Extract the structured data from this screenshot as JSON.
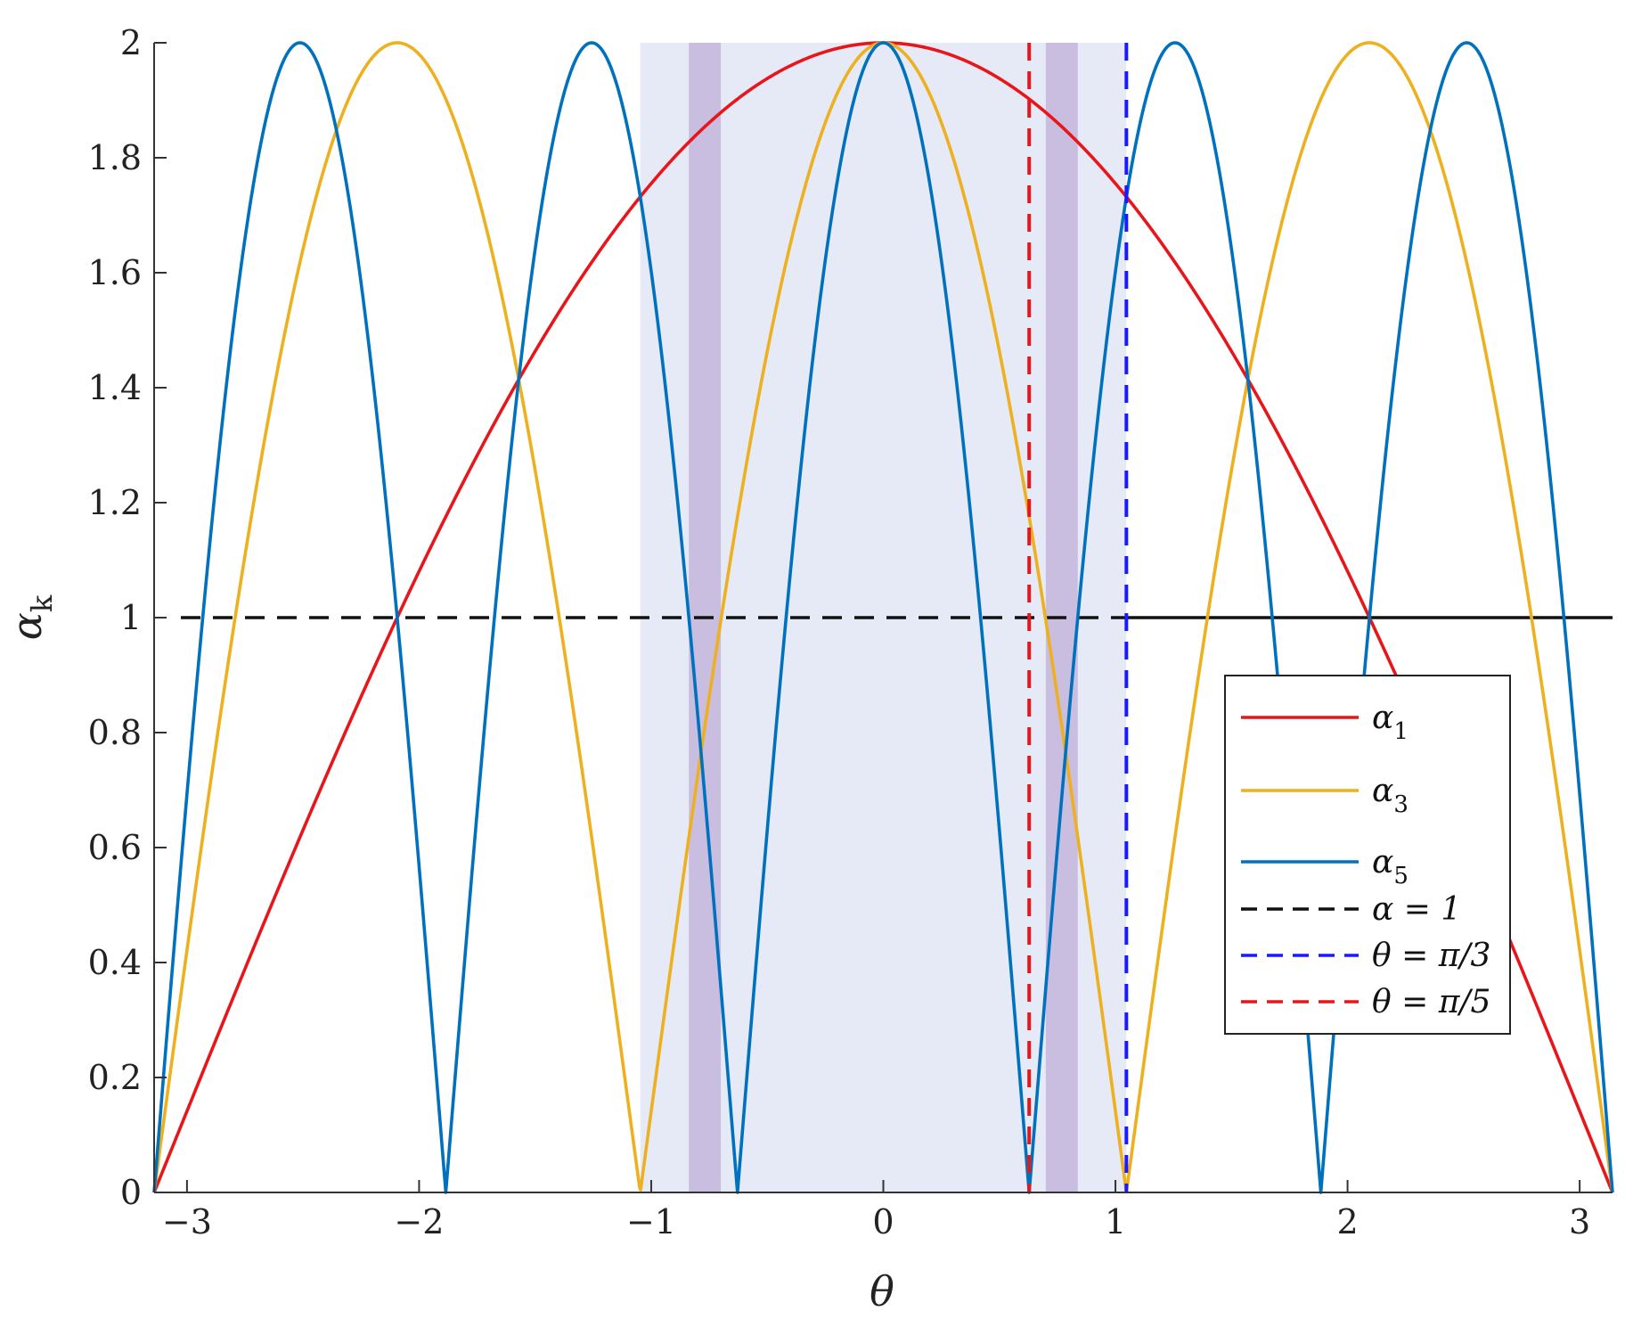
{
  "chart_data": {
    "type": "line",
    "title": "",
    "xlabel": "θ",
    "ylabel": "αk",
    "xlim": [
      -3.14159,
      3.14159
    ],
    "ylim": [
      0,
      2
    ],
    "xticks": [
      -3,
      -2,
      -1,
      0,
      1,
      2,
      3
    ],
    "xtick_labels": [
      "−3",
      "−2",
      "−1",
      "0",
      "1",
      "2",
      "3"
    ],
    "yticks": [
      0,
      0.2,
      0.4,
      0.6,
      0.8,
      1,
      1.2,
      1.4,
      1.6,
      1.8,
      2
    ],
    "ytick_labels": [
      "0",
      "0.2",
      "0.4",
      "0.6",
      "0.8",
      "1",
      "1.2",
      "1.4",
      "1.6",
      "1.8",
      "2"
    ],
    "grid": false,
    "legend_position": "lower-right",
    "shaded_regions": [
      {
        "x": [
          -1.0472,
          1.0472
        ],
        "color": "#e5eaf6"
      },
      {
        "x": [
          -0.8378,
          -0.7
        ],
        "color": "#c9bde0"
      },
      {
        "x": [
          0.7,
          0.8378
        ],
        "color": "#c9bde0"
      }
    ],
    "series": [
      {
        "name": "α1",
        "legend_label": "α",
        "legend_sub": "1",
        "k": 1,
        "formula": "2|cos(kθ/2)|",
        "color": "#e8161b",
        "style": "solid"
      },
      {
        "name": "α3",
        "legend_label": "α",
        "legend_sub": "3",
        "k": 3,
        "formula": "2|cos(kθ/2)|",
        "color": "#edb120",
        "style": "solid"
      },
      {
        "name": "α5",
        "legend_label": "α",
        "legend_sub": "5",
        "k": 5,
        "formula": "2|cos(kθ/2)|",
        "color": "#0072bd",
        "style": "solid"
      },
      {
        "name": "α = 1",
        "legend_label": "α = 1",
        "y": 1,
        "color": "#111111",
        "style": "dashed",
        "solid_from_x": 1.0472
      },
      {
        "name": "θ = π/3",
        "legend_label": "θ = π/3",
        "x": 1.0472,
        "color": "#1a1aff",
        "style": "dashed"
      },
      {
        "name": "θ = π/5",
        "legend_label": "θ = π/5",
        "x": 0.6283,
        "color": "#e8161b",
        "style": "dashed"
      }
    ]
  }
}
